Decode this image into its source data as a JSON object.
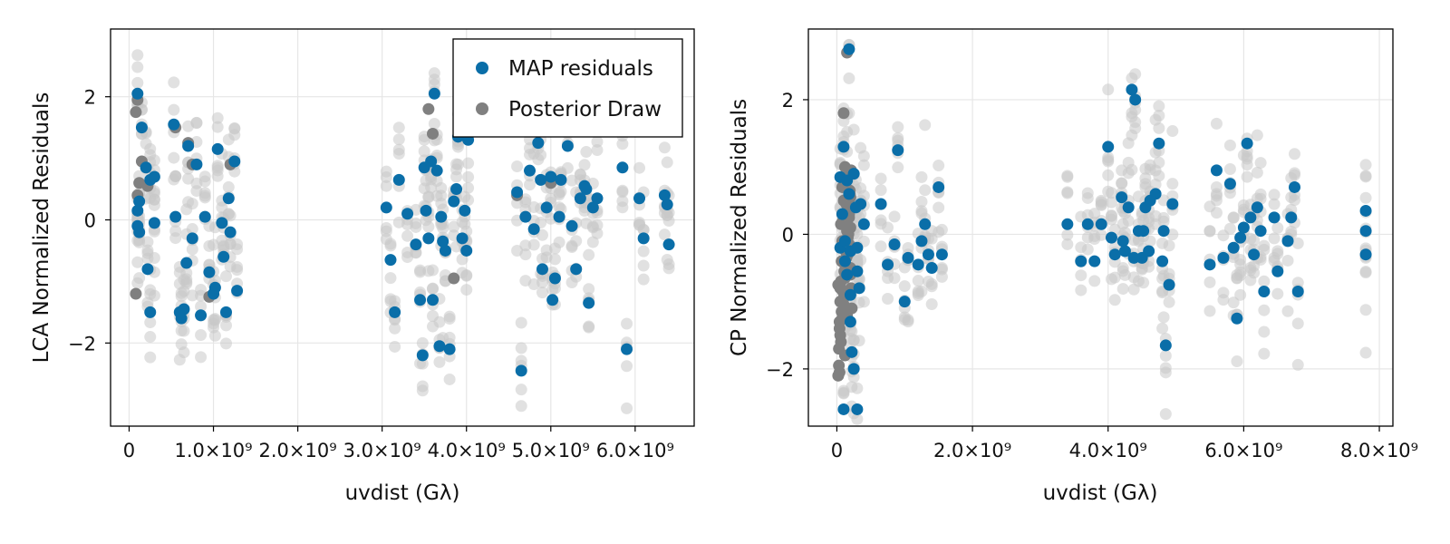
{
  "colors": {
    "map": "#0a6ea8",
    "posterior": "#808080",
    "posterior_faint": "#c8c8c8",
    "grid": "#e6e6e6",
    "frame": "#000000"
  },
  "legend": {
    "position": "top-right of left panel",
    "items": [
      {
        "label": "MAP residuals",
        "color": "#0a6ea8"
      },
      {
        "label": "Posterior Draw",
        "color": "#808080"
      }
    ]
  },
  "chart_data": [
    {
      "type": "scatter",
      "ylabel": "LCA Normalized Residuals",
      "xlabel": "uvdist (Gλ)",
      "xlim": [
        -220000000.0,
        6700000000.0
      ],
      "ylim": [
        -3.35,
        3.1
      ],
      "grid": true,
      "xticks": [
        {
          "value": 0,
          "label": "0"
        },
        {
          "value": 1000000000.0,
          "label": "1.0×10⁹"
        },
        {
          "value": 2000000000.0,
          "label": "2.0×10⁹"
        },
        {
          "value": 3000000000.0,
          "label": "3.0×10⁹"
        },
        {
          "value": 4000000000.0,
          "label": "4.0×10⁹"
        },
        {
          "value": 5000000000.0,
          "label": "5.0×10⁹"
        },
        {
          "value": 6000000000.0,
          "label": "6.0×10⁹"
        }
      ],
      "yticks": [
        {
          "value": -2,
          "label": "−2"
        },
        {
          "value": 0,
          "label": "0"
        },
        {
          "value": 2,
          "label": "2"
        }
      ],
      "series": [
        {
          "name": "MAP residuals",
          "x": [
            100000000.0,
            100000000.0,
            120000000.0,
            150000000.0,
            200000000.0,
            250000000.0,
            300000000.0,
            100000000.0,
            120000000.0,
            220000000.0,
            250000000.0,
            300000000.0,
            530000000.0,
            550000000.0,
            600000000.0,
            650000000.0,
            700000000.0,
            750000000.0,
            800000000.0,
            850000000.0,
            900000000.0,
            950000000.0,
            1000000000.0,
            1050000000.0,
            1100000000.0,
            1150000000.0,
            1180000000.0,
            1200000000.0,
            1250000000.0,
            1280000000.0,
            620000000.0,
            680000000.0,
            1020000000.0,
            1120000000.0,
            3050000000.0,
            3100000000.0,
            3150000000.0,
            3200000000.0,
            3300000000.0,
            3400000000.0,
            3450000000.0,
            3500000000.0,
            3550000000.0,
            3600000000.0,
            3620000000.0,
            3650000000.0,
            3700000000.0,
            3750000000.0,
            3800000000.0,
            3850000000.0,
            3900000000.0,
            3950000000.0,
            4000000000.0,
            4020000000.0,
            3480000000.0,
            3520000000.0,
            3580000000.0,
            3680000000.0,
            3720000000.0,
            3880000000.0,
            3980000000.0,
            4600000000.0,
            4650000000.0,
            4700000000.0,
            4750000000.0,
            4800000000.0,
            4850000000.0,
            4900000000.0,
            4950000000.0,
            5000000000.0,
            5050000000.0,
            5100000000.0,
            5200000000.0,
            5250000000.0,
            5300000000.0,
            5350000000.0,
            5400000000.0,
            5450000000.0,
            5500000000.0,
            5550000000.0,
            5850000000.0,
            5900000000.0,
            6050000000.0,
            6100000000.0,
            6350000000.0,
            6380000000.0,
            6400000000.0,
            4880000000.0,
            5020000000.0,
            5120000000.0,
            5420000000.0
          ],
          "y": [
            2.05,
            -0.1,
            0.3,
            1.5,
            0.85,
            0.65,
            -0.05,
            0.15,
            -0.2,
            -0.8,
            -1.5,
            0.7,
            1.55,
            0.05,
            -1.5,
            -1.45,
            1.2,
            -0.3,
            0.9,
            -1.55,
            0.05,
            -0.85,
            -1.2,
            1.15,
            -0.05,
            -1.5,
            0.35,
            -0.2,
            0.95,
            -1.15,
            -1.6,
            -0.7,
            -1.1,
            -0.6,
            0.2,
            -0.65,
            -1.5,
            0.65,
            0.1,
            -0.4,
            -1.3,
            0.85,
            -0.3,
            -1.3,
            2.05,
            0.8,
            0.05,
            -0.5,
            -2.1,
            0.3,
            1.35,
            -0.3,
            -0.5,
            1.3,
            -2.2,
            0.15,
            0.95,
            -2.05,
            -0.35,
            0.5,
            0.15,
            0.45,
            -2.45,
            0.05,
            0.8,
            -0.15,
            1.25,
            -0.8,
            0.2,
            0.7,
            -0.95,
            0.05,
            1.2,
            -0.1,
            -0.8,
            0.35,
            0.55,
            -1.35,
            0.2,
            0.35,
            0.85,
            -2.1,
            0.35,
            -0.3,
            0.4,
            0.25,
            -0.4,
            0.65,
            -1.3,
            0.65,
            0.5
          ]
        },
        {
          "name": "Posterior Draw",
          "x": [
            80000000.0,
            100000000.0,
            120000000.0,
            100000000.0,
            150000000.0,
            80000000.0,
            220000000.0,
            550000000.0,
            700000000.0,
            750000000.0,
            950000000.0,
            1000000000.0,
            1200000000.0,
            3550000000.0,
            3600000000.0,
            3850000000.0,
            4000000000.0,
            4600000000.0,
            5000000000.0
          ],
          "y": [
            1.75,
            1.95,
            0.6,
            0.4,
            0.95,
            -1.2,
            0.55,
            1.5,
            1.25,
            0.9,
            -1.25,
            -1.2,
            0.9,
            1.8,
            1.4,
            -0.95,
            1.35,
            0.4,
            0.6
          ]
        }
      ]
    },
    {
      "type": "scatter",
      "ylabel": "CP Normalized Residuals",
      "xlabel": "uvdist (Gλ)",
      "xlim": [
        -420000000.0,
        8200000000.0
      ],
      "ylim": [
        -2.85,
        3.05
      ],
      "grid": true,
      "xticks": [
        {
          "value": 0,
          "label": "0"
        },
        {
          "value": 2000000000.0,
          "label": "2.0×10⁹"
        },
        {
          "value": 4000000000.0,
          "label": "4.0×10⁹"
        },
        {
          "value": 6000000000.0,
          "label": "6.0×10⁹"
        },
        {
          "value": 8000000000.0,
          "label": "8.0×10⁹"
        }
      ],
      "yticks": [
        {
          "value": -2,
          "label": "−2"
        },
        {
          "value": 0,
          "label": "0"
        },
        {
          "value": 2,
          "label": "2"
        }
      ],
      "series": [
        {
          "name": "MAP residuals",
          "x": [
            50000000.0,
            80000000.0,
            100000000.0,
            120000000.0,
            150000000.0,
            180000000.0,
            200000000.0,
            220000000.0,
            250000000.0,
            280000000.0,
            300000000.0,
            330000000.0,
            350000000.0,
            400000000.0,
            50000000.0,
            100000000.0,
            150000000.0,
            200000000.0,
            250000000.0,
            300000000.0,
            200000000.0,
            120000000.0,
            180000000.0,
            300000000.0,
            650000000.0,
            750000000.0,
            900000000.0,
            850000000.0,
            1050000000.0,
            1000000000.0,
            1200000000.0,
            1300000000.0,
            1400000000.0,
            1550000000.0,
            1500000000.0,
            1250000000.0,
            1350000000.0,
            3400000000.0,
            3600000000.0,
            3700000000.0,
            3800000000.0,
            3900000000.0,
            4000000000.0,
            4050000000.0,
            4100000000.0,
            4200000000.0,
            4250000000.0,
            4300000000.0,
            4350000000.0,
            4400000000.0,
            4450000000.0,
            4500000000.0,
            4550000000.0,
            4600000000.0,
            4700000000.0,
            4750000000.0,
            4800000000.0,
            4850000000.0,
            4900000000.0,
            4950000000.0,
            4220000000.0,
            4380000000.0,
            4520000000.0,
            4620000000.0,
            4820000000.0,
            5500000000.0,
            5600000000.0,
            5700000000.0,
            5800000000.0,
            5850000000.0,
            5900000000.0,
            5950000000.0,
            6000000000.0,
            6050000000.0,
            6100000000.0,
            6150000000.0,
            6300000000.0,
            6450000000.0,
            6500000000.0,
            6700000000.0,
            6750000000.0,
            6800000000.0,
            7800000000.0,
            7800000000.0,
            7800000000.0,
            6650000000.0,
            6200000000.0,
            6250000000.0
          ],
          "y": [
            0.85,
            0.3,
            1.3,
            -0.4,
            0.8,
            2.75,
            -0.9,
            -1.75,
            -2.0,
            0.4,
            -0.55,
            -0.8,
            0.45,
            0.15,
            -0.2,
            -2.6,
            -0.6,
            -0.25,
            0.9,
            -2.6,
            -1.3,
            -0.1,
            0.6,
            -0.2,
            0.45,
            -0.45,
            1.25,
            -0.15,
            -0.35,
            -1.0,
            -0.45,
            0.15,
            -0.5,
            -0.3,
            0.7,
            -0.1,
            -0.3,
            0.15,
            -0.4,
            0.15,
            -0.4,
            0.15,
            1.3,
            -0.05,
            -0.3,
            0.55,
            -0.25,
            0.4,
            2.15,
            2.0,
            0.05,
            -0.35,
            0.4,
            -0.25,
            0.6,
            1.35,
            -0.4,
            -1.65,
            -0.75,
            0.45,
            -0.1,
            -0.35,
            0.05,
            0.5,
            0.05,
            -0.45,
            0.95,
            -0.35,
            0.75,
            -0.2,
            -1.25,
            -0.05,
            0.1,
            1.35,
            0.25,
            -0.3,
            -0.85,
            0.25,
            -0.55,
            0.25,
            0.7,
            -0.85,
            0.35,
            0.05,
            -0.3,
            -0.1,
            0.4,
            0.05
          ]
        },
        {
          "name": "Posterior Draw",
          "x": [
            20000000.0,
            30000000.0,
            40000000.0,
            50000000.0,
            60000000.0,
            70000000.0,
            80000000.0,
            90000000.0,
            100000000.0,
            110000000.0,
            120000000.0,
            130000000.0,
            140000000.0,
            150000000.0,
            160000000.0,
            170000000.0,
            180000000.0,
            190000000.0,
            200000000.0,
            210000000.0,
            220000000.0,
            30000000.0,
            50000000.0,
            70000000.0,
            90000000.0,
            110000000.0,
            130000000.0,
            150000000.0,
            170000000.0,
            190000000.0,
            210000000.0,
            40000000.0,
            60000000.0,
            80000000.0,
            100000000.0,
            120000000.0,
            140000000.0,
            160000000.0,
            180000000.0,
            200000000.0,
            20000000.0,
            60000000.0,
            100000000.0,
            140000000.0,
            180000000.0,
            40000000.0,
            80000000.0,
            120000000.0,
            160000000.0,
            200000000.0,
            100000000.0,
            150000000.0,
            50000000.0,
            200000000.0,
            120000000.0,
            80000000.0
          ],
          "y": [
            -2.1,
            -1.7,
            -1.3,
            -1.0,
            -0.7,
            -0.4,
            -0.1,
            0.2,
            0.5,
            0.8,
            1.0,
            -0.6,
            -0.9,
            -1.2,
            -0.3,
            0.0,
            0.3,
            0.6,
            -0.5,
            -0.8,
            -1.1,
            -1.95,
            -1.5,
            -1.15,
            -0.85,
            -0.55,
            -0.25,
            0.05,
            0.35,
            0.65,
            0.95,
            -2.05,
            -1.6,
            -1.25,
            -0.95,
            -0.65,
            -0.35,
            -0.05,
            0.25,
            0.55,
            -0.75,
            0.15,
            -1.05,
            0.45,
            -0.15,
            -1.4,
            0.7,
            -0.45,
            0.9,
            0.1,
            1.8,
            2.7,
            -0.8,
            -0.6,
            -1.8,
            0.3
          ]
        }
      ]
    }
  ]
}
